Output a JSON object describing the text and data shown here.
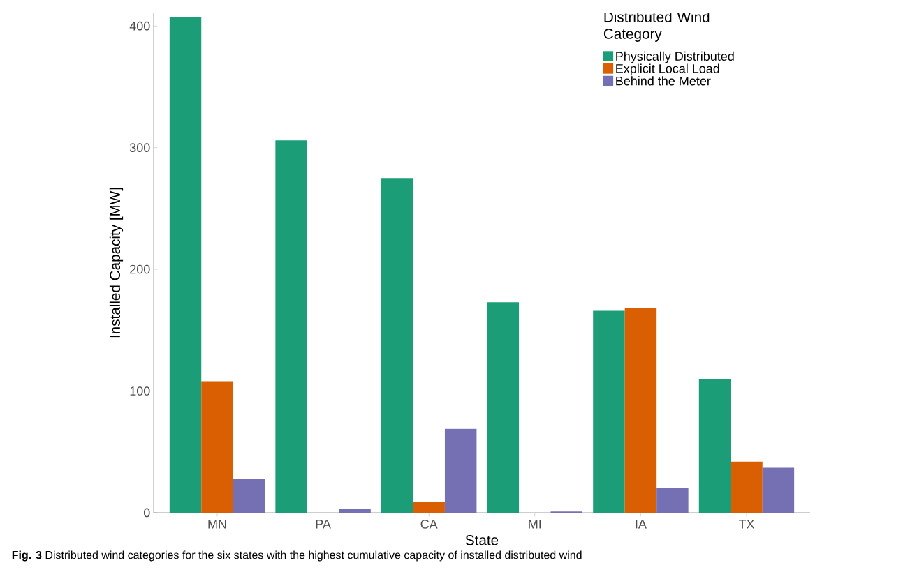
{
  "chart_data": {
    "type": "bar",
    "xlabel": "State",
    "ylabel": "Installed Capacity [MW]",
    "legend_title": "Distributed Wind Category",
    "categories": [
      "MN",
      "PA",
      "CA",
      "MI",
      "IA",
      "TX"
    ],
    "series": [
      {
        "name": "Physically Distributed",
        "color": "#1b9e77",
        "values": [
          407,
          306,
          275,
          173,
          166,
          110
        ]
      },
      {
        "name": "Explicit Local Load",
        "color": "#d95f02",
        "values": [
          108,
          0,
          9,
          0,
          168,
          42
        ]
      },
      {
        "name": "Behind the Meter",
        "color": "#7570b3",
        "values": [
          28,
          3,
          69,
          1,
          20,
          37
        ]
      }
    ],
    "ylim": [
      0,
      411
    ],
    "yticks": [
      0,
      100,
      200,
      300,
      400
    ],
    "grid": false,
    "legend": "top right",
    "annotations": [
      "**Fig. 3** Distributed wind categories for the six states with the highest cumulative capacity of installed distributed wind"
    ]
  }
}
